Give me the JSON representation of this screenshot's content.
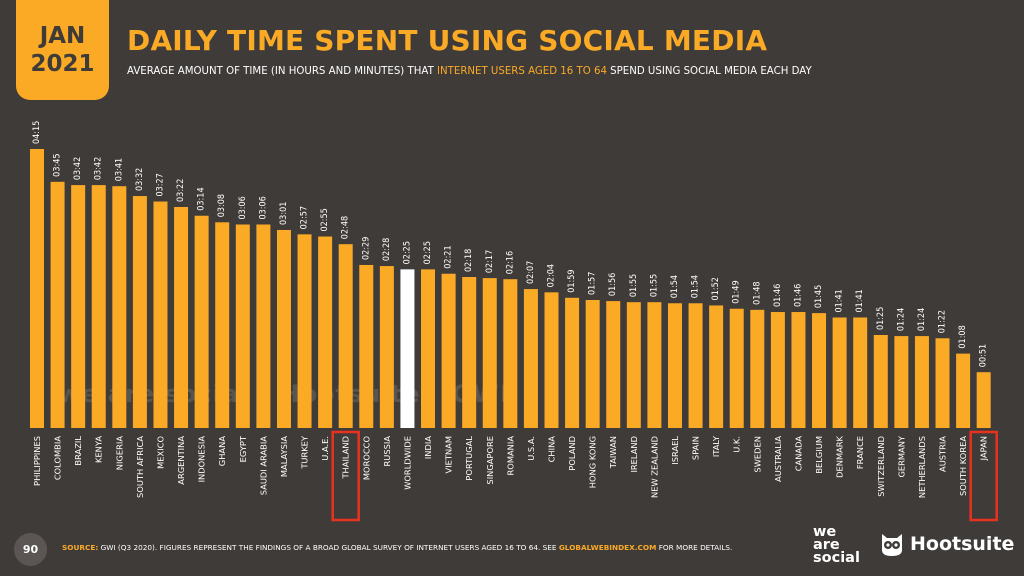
{
  "header": {
    "month": "JAN",
    "year": "2021",
    "title": "DAILY TIME SPENT USING SOCIAL MEDIA",
    "subtitle_pre": "AVERAGE AMOUNT OF TIME (IN HOURS AND MINUTES) THAT ",
    "subtitle_highlight": "INTERNET USERS AGED 16 TO 64",
    "subtitle_post": " SPEND USING SOCIAL MEDIA EACH DAY"
  },
  "watermark": {
    "brand1": "we are social",
    "brand2": "Hootsuite",
    "brand3": "GWI."
  },
  "footer": {
    "page_number": "90",
    "source_label": "SOURCE:",
    "source_text": " GWI (Q3 2020). FIGURES REPRESENT THE FINDINGS OF A BROAD GLOBAL SURVEY OF INTERNET USERS AGED 16 TO 64. SEE ",
    "source_link": "GLOBALWEBINDEX.COM",
    "source_end": " FOR MORE DETAILS.",
    "logo1_line1": "we",
    "logo1_line2": "are",
    "logo1_line3": "social",
    "logo2": "Hootsuite"
  },
  "colors": {
    "background": "#3f3b39",
    "bar": "#fbaa26",
    "highlight_bar": "#ffffff",
    "highlight_box": "#e8321f"
  },
  "chart_data": {
    "type": "bar",
    "orientation": "vertical",
    "unit": "hh:mm",
    "categories": [
      "PHILIPPINES",
      "COLOMBIA",
      "BRAZIL",
      "KENYA",
      "NIGERIA",
      "SOUTH AFRICA",
      "MEXICO",
      "ARGENTINA",
      "INDONESIA",
      "GHANA",
      "EGYPT",
      "SAUDI ARABIA",
      "MALAYSIA",
      "TURKEY",
      "U.A.E.",
      "THAILAND",
      "MOROCCO",
      "RUSSIA",
      "WORLDWIDE",
      "INDIA",
      "VIETNAM",
      "PORTUGAL",
      "SINGAPORE",
      "ROMANIA",
      "U.S.A.",
      "CHINA",
      "POLAND",
      "HONG KONG",
      "TAIWAN",
      "IRELAND",
      "NEW ZEALAND",
      "ISRAEL",
      "SPAIN",
      "ITALY",
      "U.K.",
      "SWEDEN",
      "AUSTRALIA",
      "CANADA",
      "BELGIUM",
      "DENMARK",
      "FRANCE",
      "SWITZERLAND",
      "GERMANY",
      "NETHERLANDS",
      "AUSTRIA",
      "SOUTH KOREA",
      "JAPAN"
    ],
    "labels": [
      "04:15",
      "03:45",
      "03:42",
      "03:42",
      "03:41",
      "03:32",
      "03:27",
      "03:22",
      "03:14",
      "03:08",
      "03:06",
      "03:06",
      "03:01",
      "02:57",
      "02:55",
      "02:48",
      "02:29",
      "02:28",
      "02:25",
      "02:25",
      "02:21",
      "02:18",
      "02:17",
      "02:16",
      "02:07",
      "02:04",
      "01:59",
      "01:57",
      "01:56",
      "01:55",
      "01:55",
      "01:54",
      "01:54",
      "01:52",
      "01:49",
      "01:48",
      "01:46",
      "01:46",
      "01:45",
      "01:41",
      "01:41",
      "01:25",
      "01:24",
      "01:24",
      "01:22",
      "01:08",
      "00:51"
    ],
    "values_minutes": [
      255,
      225,
      222,
      222,
      221,
      212,
      207,
      202,
      194,
      188,
      186,
      186,
      181,
      177,
      175,
      168,
      149,
      148,
      145,
      145,
      141,
      138,
      137,
      136,
      127,
      124,
      119,
      117,
      116,
      115,
      115,
      114,
      114,
      112,
      109,
      108,
      106,
      106,
      105,
      101,
      101,
      85,
      84,
      84,
      82,
      68,
      51
    ],
    "highlight_white": [
      "WORLDWIDE"
    ],
    "highlight_boxed": [
      "THAILAND",
      "JAPAN"
    ],
    "ylim_minutes": [
      0,
      255
    ]
  }
}
